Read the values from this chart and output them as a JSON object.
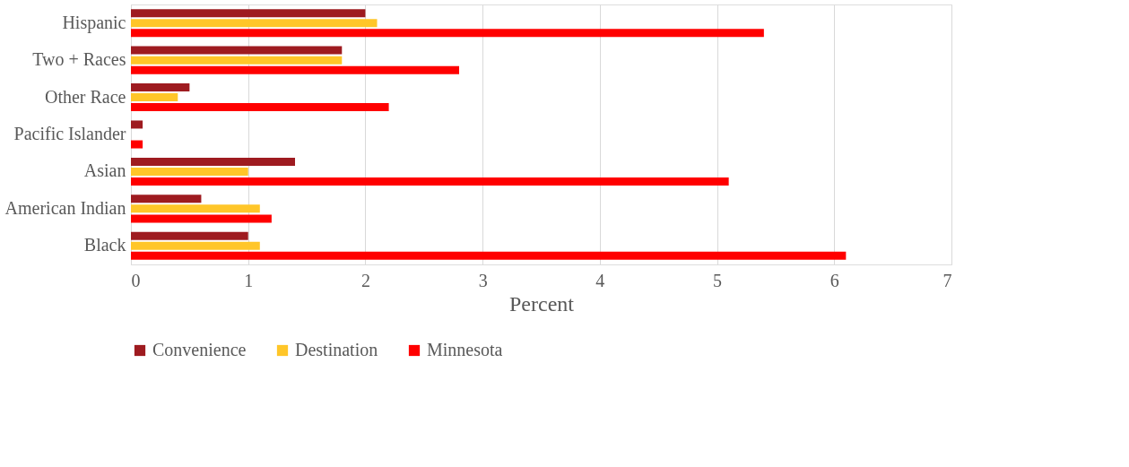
{
  "chart_data": {
    "type": "bar",
    "orientation": "horizontal",
    "xlabel": "Percent",
    "categories": [
      "Hispanic",
      "Two + Races",
      "Other Race",
      "Pacific Islander",
      "Asian",
      "American Indian",
      "Black"
    ],
    "series": [
      {
        "name": "Convenience",
        "color": "#9e1b20",
        "values": [
          2.0,
          1.8,
          0.5,
          0.1,
          1.4,
          0.6,
          1.0
        ]
      },
      {
        "name": "Destination",
        "color": "#ffc629",
        "values": [
          2.1,
          1.8,
          0.4,
          0,
          1.0,
          1.1,
          1.1
        ]
      },
      {
        "name": "Minnesota",
        "color": "#ff0000",
        "values": [
          5.4,
          2.8,
          2.2,
          0.1,
          5.1,
          1.2,
          6.1
        ]
      }
    ],
    "xlim": [
      0,
      7
    ],
    "xticks": [
      0,
      1,
      2,
      3,
      4,
      5,
      6,
      7
    ],
    "grid": "x",
    "legend": "bottom"
  }
}
